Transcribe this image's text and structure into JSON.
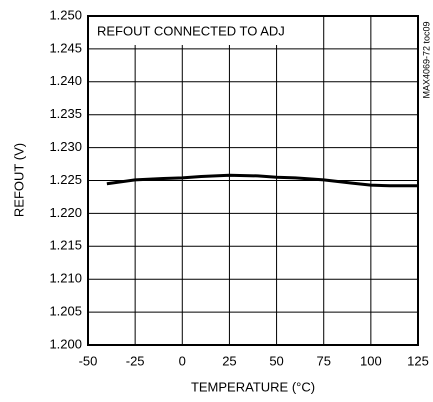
{
  "chart_data": {
    "type": "line",
    "annotation": "REFOUT CONNECTED TO ADJ",
    "side_note": "MAX4069-72 toc09",
    "x_label": "TEMPERATURE (°C)",
    "y_label": "REFOUT (V)",
    "x": [
      -40,
      -25,
      -10,
      0,
      10,
      25,
      40,
      50,
      60,
      75,
      90,
      100,
      110,
      125
    ],
    "series": [
      {
        "name": "REFOUT",
        "color": "#000000",
        "values": [
          1.2245,
          1.2251,
          1.2253,
          1.2254,
          1.2256,
          1.2258,
          1.2257,
          1.2255,
          1.2254,
          1.2251,
          1.2246,
          1.2243,
          1.2242,
          1.2242
        ]
      }
    ],
    "xlim": [
      -50,
      125
    ],
    "xticks": [
      -50,
      -25,
      0,
      25,
      50,
      75,
      100,
      125
    ],
    "ylim": [
      1.2,
      1.25
    ],
    "yticks": [
      {
        "value": 1.2,
        "label": "1.200"
      },
      1.205,
      {
        "value": 1.21,
        "label": "1.210"
      },
      1.215,
      {
        "value": 1.22,
        "label": "1.220"
      },
      1.225,
      {
        "value": 1.23,
        "label": "1.230"
      },
      1.235,
      {
        "value": 1.24,
        "label": "1.240"
      },
      1.245,
      {
        "value": 1.25,
        "label": "1.250"
      }
    ],
    "grid": true
  }
}
